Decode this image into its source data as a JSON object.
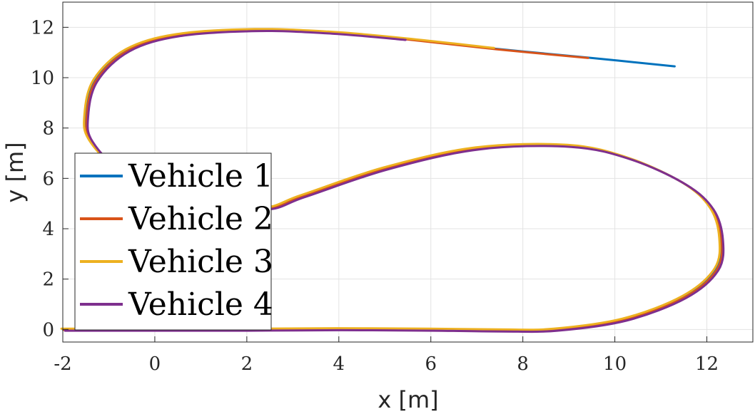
{
  "chart_data": {
    "type": "line",
    "xlabel": "x [m]",
    "ylabel": "y [m]",
    "xlim": [
      -2,
      13
    ],
    "ylim": [
      -0.5,
      13
    ],
    "xticks": [
      -2,
      0,
      2,
      4,
      6,
      8,
      10,
      12
    ],
    "yticks": [
      0,
      2,
      4,
      6,
      8,
      10,
      12
    ],
    "grid": true,
    "legend_position": "lower-left",
    "base_path": {
      "x": [
        -2,
        0,
        2,
        4,
        6,
        7.5,
        8.7,
        10.2,
        11.5,
        12.2,
        12.3,
        12.1,
        11.5,
        10.3,
        9,
        7,
        5,
        3.2,
        2.3,
        0.5,
        -0.7,
        -1.4,
        -1.5,
        -1.3,
        -0.6,
        0.5,
        2.2,
        3.8,
        5.4,
        7.4,
        9.4,
        11.3
      ],
      "y": [
        0,
        0,
        0,
        0.02,
        0,
        -0.03,
        0,
        0.4,
        1.3,
        2.4,
        3.6,
        4.8,
        5.8,
        6.8,
        7.3,
        7.2,
        6.4,
        5.3,
        4.8,
        5.1,
        6.2,
        7.5,
        8.5,
        9.9,
        11.1,
        11.7,
        11.9,
        11.8,
        11.55,
        11.15,
        10.8,
        10.45
      ]
    },
    "series": [
      {
        "name": "Vehicle 1",
        "color": "#0072BD",
        "end_index": 31,
        "offset": 0.0
      },
      {
        "name": "Vehicle 2",
        "color": "#D95319",
        "end_index": 30,
        "offset": 0.02
      },
      {
        "name": "Vehicle 3",
        "color": "#EDB120",
        "end_index": 29,
        "offset": -0.03
      },
      {
        "name": "Vehicle 4",
        "color": "#7E2F8E",
        "end_index": 28,
        "offset": 0.05
      }
    ]
  }
}
